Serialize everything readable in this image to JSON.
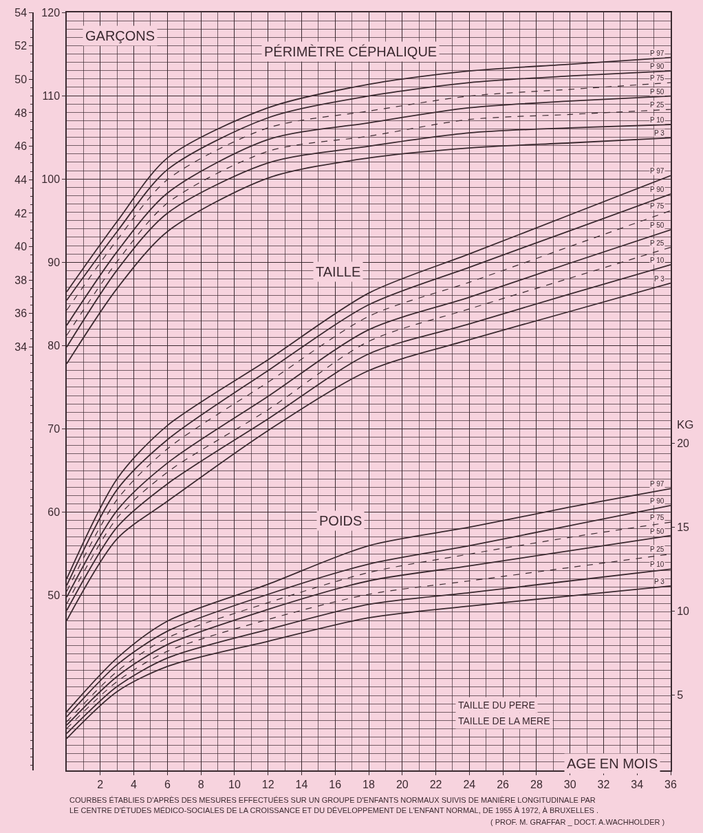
{
  "chart_data": {
    "type": "line",
    "title": "GARÇONS",
    "xlabel": "AGE EN MOIS",
    "y3label": "KG",
    "annotations": [
      "PÉRIMÈTRE CÉPHALIQUE",
      "TAILLE",
      "POIDS",
      "TAILLE DU PERE",
      "TAILLE DE LA MERE",
      "COURBES ÉTABLIES D'APRÈS DES MESURES EFFECTUÉES SUR UN GROUPE D'ENFANTS NORMAUX SUIVIS DE MANIÈRE LONGITUDINALE PAR",
      "LE CENTRE D'ÉTUDES MÉDICO-SOCIALES DE LA CROISSANCE ET DU DÉVELOPPEMENT DE L'ENFANT NORMAL, DE 1955 À 1972, À BRUXELLES .",
      "( PROF. M. GRAFFAR _ DOCT. A.WACHHOLDER )"
    ],
    "x": [
      0,
      3,
      6,
      12,
      18,
      24,
      30,
      36
    ],
    "xlim": [
      0,
      36
    ],
    "xticks": [
      2,
      4,
      6,
      8,
      10,
      12,
      14,
      16,
      18,
      20,
      22,
      24,
      26,
      28,
      30,
      32,
      34,
      36
    ],
    "ylim": [
      29,
      120
    ],
    "yticks": [
      50,
      60,
      70,
      80,
      90,
      100,
      110,
      120
    ],
    "y2lim": [
      8.7,
      54
    ],
    "y2ticks": [
      34,
      36,
      38,
      40,
      42,
      44,
      46,
      48,
      50,
      52,
      54
    ],
    "y3lim": [
      0.5,
      45.7
    ],
    "y3ticks": [
      5,
      10,
      15,
      20
    ],
    "grid": true,
    "legend": false,
    "marker": "none",
    "series": [
      {
        "name": "P 97",
        "axis": "y2",
        "color": "#3b2a30",
        "line_style": "solid",
        "values": [
          37.3,
          41.5,
          45.3,
          48.3,
          49.7,
          50.5,
          50.9,
          51.3
        ]
      },
      {
        "name": "P 90",
        "axis": "y2",
        "color": "#3b2a30",
        "line_style": "solid",
        "values": [
          36.8,
          40.9,
          44.6,
          47.7,
          49.0,
          49.8,
          50.2,
          50.5
        ]
      },
      {
        "name": "P 75",
        "axis": "y2",
        "color": "#3b2a30",
        "line_style": "dashed",
        "values": [
          36.2,
          40.4,
          44.0,
          47.1,
          48.1,
          49.0,
          49.4,
          49.8
        ]
      },
      {
        "name": "P 50",
        "axis": "y2",
        "color": "#3b2a30",
        "line_style": "solid",
        "values": [
          35.3,
          39.7,
          43.2,
          46.4,
          47.4,
          48.3,
          48.7,
          49.0
        ]
      },
      {
        "name": "P 25",
        "axis": "y2",
        "color": "#3b2a30",
        "line_style": "dashed",
        "values": [
          34.7,
          39.1,
          42.6,
          45.7,
          46.6,
          47.6,
          47.9,
          48.2
        ]
      },
      {
        "name": "P 10",
        "axis": "y2",
        "color": "#3b2a30",
        "line_style": "solid",
        "values": [
          34.0,
          38.6,
          42.0,
          45.0,
          46.0,
          46.8,
          47.1,
          47.3
        ]
      },
      {
        "name": "P 3",
        "axis": "y2",
        "color": "#3b2a30",
        "line_style": "solid",
        "values": [
          33.0,
          37.5,
          40.9,
          44.1,
          45.3,
          45.9,
          46.2,
          46.5
        ]
      },
      {
        "name": "P 97",
        "axis": "y",
        "color": "#3b2a30",
        "line_style": "solid",
        "values": [
          52.0,
          64.0,
          70.4,
          78.3,
          86.3,
          91.0,
          95.7,
          100.4
        ]
      },
      {
        "name": "P 90",
        "axis": "y",
        "color": "#3b2a30",
        "line_style": "solid",
        "values": [
          51.2,
          62.7,
          68.7,
          77.0,
          84.9,
          89.4,
          93.8,
          98.2
        ]
      },
      {
        "name": "P 75",
        "axis": "y",
        "color": "#3b2a30",
        "line_style": "dashed",
        "values": [
          50.5,
          61.5,
          67.6,
          75.6,
          83.5,
          87.6,
          91.9,
          96.2
        ]
      },
      {
        "name": "P 50",
        "axis": "y",
        "color": "#3b2a30",
        "line_style": "solid",
        "values": [
          49.8,
          60.2,
          65.9,
          73.9,
          81.9,
          85.8,
          89.9,
          93.9
        ]
      },
      {
        "name": "P 25",
        "axis": "y",
        "color": "#3b2a30",
        "line_style": "dashed",
        "values": [
          49.0,
          59.3,
          64.8,
          72.3,
          80.5,
          84.4,
          88.1,
          91.8
        ]
      },
      {
        "name": "P 10",
        "axis": "y",
        "color": "#3b2a30",
        "line_style": "solid",
        "values": [
          48.2,
          58.2,
          63.4,
          71.2,
          79.0,
          82.6,
          86.2,
          89.7
        ]
      },
      {
        "name": "P 3",
        "axis": "y",
        "color": "#3b2a30",
        "line_style": "solid",
        "values": [
          47.0,
          56.8,
          61.3,
          69.8,
          77.0,
          80.7,
          84.1,
          87.5
        ]
      },
      {
        "name": "P 97",
        "axis": "y3",
        "color": "#3b2a30",
        "line_style": "solid",
        "values": [
          4.0,
          7.2,
          9.4,
          11.6,
          13.9,
          15.0,
          16.2,
          17.3
        ]
      },
      {
        "name": "P 90",
        "axis": "y3",
        "color": "#3b2a30",
        "line_style": "solid",
        "values": [
          3.7,
          6.8,
          8.8,
          11.0,
          12.8,
          13.9,
          15.1,
          16.3
        ]
      },
      {
        "name": "P 75",
        "axis": "y3",
        "color": "#3b2a30",
        "line_style": "dashed",
        "values": [
          3.4,
          6.4,
          8.4,
          10.5,
          12.3,
          13.4,
          14.4,
          15.3
        ]
      },
      {
        "name": "P 50",
        "axis": "y3",
        "color": "#3b2a30",
        "line_style": "solid",
        "values": [
          3.2,
          6.1,
          8.0,
          10.1,
          11.8,
          12.7,
          13.6,
          14.5
        ]
      },
      {
        "name": "P 25",
        "axis": "y3",
        "color": "#3b2a30",
        "line_style": "dashed",
        "values": [
          3.0,
          5.8,
          7.6,
          9.5,
          11.0,
          11.8,
          12.6,
          13.4
        ]
      },
      {
        "name": "P 10",
        "axis": "y3",
        "color": "#3b2a30",
        "line_style": "solid",
        "values": [
          2.7,
          5.5,
          7.2,
          8.9,
          10.4,
          11.1,
          11.8,
          12.5
        ]
      },
      {
        "name": "P 3",
        "axis": "y3",
        "color": "#3b2a30",
        "line_style": "solid",
        "values": [
          2.4,
          5.2,
          6.7,
          8.2,
          9.6,
          10.3,
          10.9,
          11.5
        ]
      }
    ]
  }
}
